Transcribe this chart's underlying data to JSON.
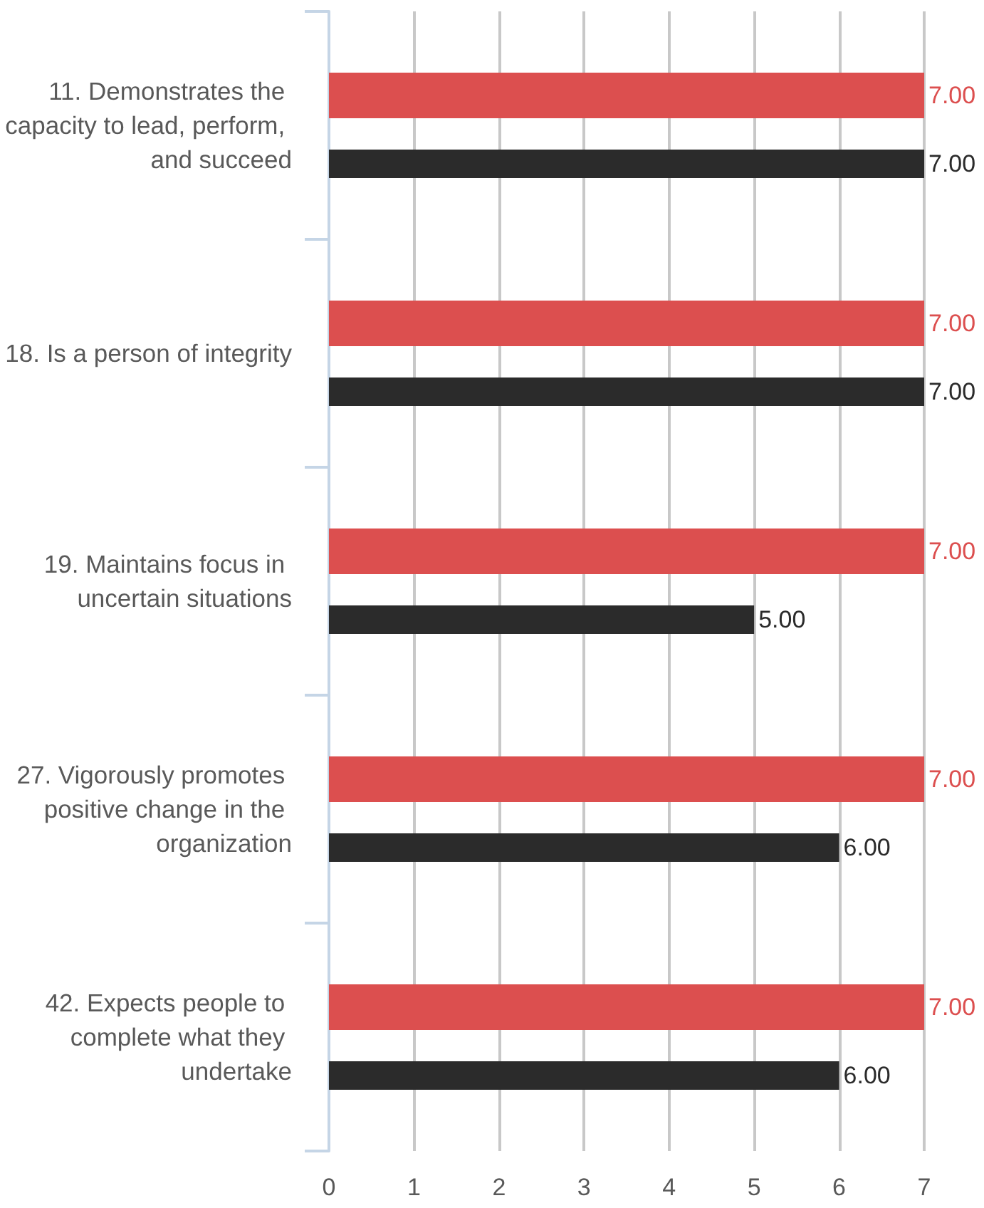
{
  "chart_data": {
    "type": "bar",
    "orientation": "horizontal",
    "categories": [
      "11. Demonstrates the capacity to lead, perform, and succeed",
      "18. Is a person of integrity",
      "19. Maintains focus in uncertain situations",
      "27. Vigorously promotes positive change in the organization",
      "42. Expects people to complete what they undertake"
    ],
    "series": [
      {
        "color": "#dc4f4f",
        "values": [
          7,
          7,
          7,
          7,
          7
        ],
        "value_labels": [
          "7.00",
          "7.00",
          "7.00",
          "7.00",
          "7.00"
        ]
      },
      {
        "color": "#2b2b2b",
        "values": [
          7,
          7,
          5,
          6,
          6
        ],
        "value_labels": [
          "7.00",
          "7.00",
          "5.00",
          "6.00",
          "6.00"
        ]
      }
    ],
    "xlim": [
      0,
      7
    ],
    "xticks": [
      0,
      1,
      2,
      3,
      4,
      5,
      6,
      7
    ],
    "grid": "x"
  }
}
